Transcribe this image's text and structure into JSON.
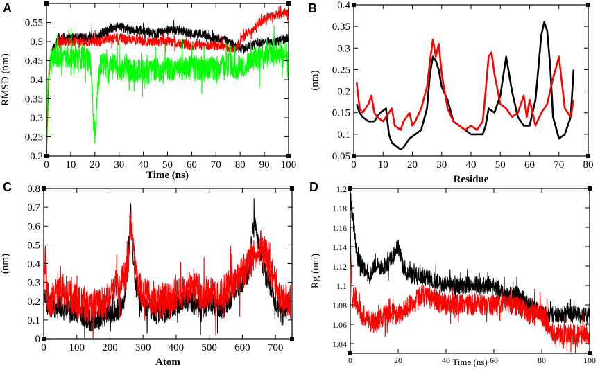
{
  "chart_data": [
    {
      "type": "line",
      "panel": "A",
      "xlabel": "Time (ns)",
      "ylabel": "RMSD (nm)",
      "xlim": [
        0,
        100
      ],
      "ylim": [
        0.2,
        0.6
      ],
      "xticks": [
        0,
        10,
        20,
        30,
        40,
        50,
        60,
        70,
        80,
        90,
        100
      ],
      "yticks": [
        0.2,
        0.25,
        0.3,
        0.35,
        0.4,
        0.45,
        0.5,
        0.55
      ],
      "ytick_labels": [
        "0.2",
        "0.25",
        "0.3",
        "0.35",
        "0.4",
        "0.45",
        "0.5",
        "0.55"
      ],
      "series": [
        {
          "name": "black",
          "color": "#000000",
          "noise": 0.012,
          "x": [
            0,
            1,
            2,
            5,
            10,
            20,
            25,
            30,
            35,
            40,
            45,
            50,
            55,
            60,
            65,
            70,
            75,
            80,
            85,
            90,
            95,
            100
          ],
          "y": [
            0.2,
            0.42,
            0.47,
            0.51,
            0.51,
            0.51,
            0.53,
            0.54,
            0.53,
            0.53,
            0.52,
            0.53,
            0.53,
            0.52,
            0.52,
            0.51,
            0.5,
            0.48,
            0.49,
            0.5,
            0.5,
            0.51
          ]
        },
        {
          "name": "red",
          "color": "#ff0000",
          "noise": 0.012,
          "x": [
            0,
            1,
            2,
            5,
            10,
            20,
            30,
            40,
            50,
            60,
            70,
            78,
            80,
            82,
            85,
            88,
            90,
            95,
            100
          ],
          "y": [
            0.2,
            0.42,
            0.46,
            0.5,
            0.5,
            0.5,
            0.51,
            0.5,
            0.5,
            0.49,
            0.49,
            0.48,
            0.5,
            0.52,
            0.53,
            0.55,
            0.56,
            0.57,
            0.58
          ]
        },
        {
          "name": "green",
          "color": "#00ff00",
          "noise": 0.032,
          "x": [
            0,
            0.6,
            1.5,
            3,
            8,
            15,
            18,
            19,
            20,
            21,
            22,
            25,
            30,
            40,
            50,
            60,
            70,
            75,
            80,
            85,
            90,
            95,
            99,
            100
          ],
          "y": [
            0.22,
            0.36,
            0.44,
            0.46,
            0.46,
            0.46,
            0.45,
            0.35,
            0.24,
            0.36,
            0.44,
            0.44,
            0.43,
            0.42,
            0.43,
            0.43,
            0.43,
            0.44,
            0.43,
            0.45,
            0.46,
            0.47,
            0.46,
            0.42
          ]
        }
      ]
    },
    {
      "type": "line",
      "panel": "B",
      "xlabel": "Residue",
      "ylabel": "(nm)",
      "xlim": [
        0,
        80
      ],
      "ylim": [
        0.05,
        0.4
      ],
      "xticks": [
        0,
        10,
        20,
        30,
        40,
        50,
        60,
        70,
        80
      ],
      "yticks": [
        0.05,
        0.1,
        0.15,
        0.2,
        0.25,
        0.3,
        0.35,
        0.4
      ],
      "ytick_labels": [
        "0.05",
        "0.1",
        "0.15",
        "0.2",
        "0.25",
        "0.3",
        "0.35",
        "0.4"
      ],
      "series": [
        {
          "name": "black",
          "color": "#000000",
          "noise": 0,
          "x": [
            1,
            2,
            3,
            5,
            7,
            9,
            11,
            12,
            13,
            15,
            16,
            17,
            19,
            21,
            23,
            25,
            26,
            27,
            28,
            29,
            30,
            32,
            34,
            36,
            38,
            40,
            42,
            44,
            45,
            46,
            48,
            50,
            52,
            54,
            56,
            58,
            60,
            62,
            64,
            65,
            66,
            67,
            68,
            70,
            72,
            74,
            75
          ],
          "y": [
            0.17,
            0.15,
            0.14,
            0.13,
            0.13,
            0.15,
            0.16,
            0.1,
            0.08,
            0.07,
            0.065,
            0.07,
            0.09,
            0.1,
            0.11,
            0.16,
            0.24,
            0.28,
            0.27,
            0.25,
            0.21,
            0.18,
            0.13,
            0.12,
            0.11,
            0.1,
            0.1,
            0.1,
            0.12,
            0.16,
            0.15,
            0.19,
            0.28,
            0.2,
            0.14,
            0.12,
            0.12,
            0.18,
            0.33,
            0.36,
            0.34,
            0.26,
            0.14,
            0.09,
            0.1,
            0.14,
            0.25
          ]
        },
        {
          "name": "red",
          "color": "#ff0000",
          "noise": 0,
          "x": [
            1,
            2,
            3,
            5,
            6,
            7,
            8,
            10,
            12,
            13,
            14,
            16,
            17,
            19,
            20,
            21,
            23,
            25,
            26,
            27,
            28,
            29,
            30,
            32,
            34,
            36,
            38,
            40,
            42,
            44,
            45,
            46,
            47,
            48,
            50,
            52,
            54,
            56,
            58,
            59,
            60,
            62,
            64,
            66,
            68,
            70,
            72,
            74,
            75
          ],
          "y": [
            0.22,
            0.16,
            0.15,
            0.17,
            0.19,
            0.15,
            0.14,
            0.13,
            0.15,
            0.16,
            0.12,
            0.11,
            0.13,
            0.15,
            0.12,
            0.13,
            0.16,
            0.21,
            0.27,
            0.32,
            0.28,
            0.31,
            0.24,
            0.16,
            0.13,
            0.12,
            0.11,
            0.12,
            0.11,
            0.13,
            0.2,
            0.28,
            0.29,
            0.24,
            0.17,
            0.16,
            0.14,
            0.15,
            0.19,
            0.14,
            0.18,
            0.12,
            0.15,
            0.17,
            0.23,
            0.28,
            0.16,
            0.14,
            0.18
          ]
        }
      ]
    },
    {
      "type": "line",
      "panel": "C",
      "xlabel": "Atom",
      "ylabel": "(nm)",
      "xlim": [
        0,
        750
      ],
      "ylim": [
        0,
        0.8
      ],
      "xticks": [
        0,
        100,
        200,
        300,
        400,
        500,
        600,
        700
      ],
      "yticks": [
        0,
        0.1,
        0.2,
        0.3,
        0.4,
        0.5,
        0.6,
        0.7,
        0.8
      ],
      "ytick_labels": [
        "0",
        "0.1",
        "0.2",
        "0.3",
        "0.4",
        "0.5",
        "0.6",
        "0.7",
        "0.8"
      ],
      "series": [
        {
          "name": "black",
          "color": "#000000",
          "noise": 0.06,
          "x": [
            0,
            20,
            40,
            60,
            80,
            100,
            120,
            140,
            160,
            180,
            200,
            220,
            240,
            255,
            262,
            270,
            280,
            300,
            320,
            340,
            360,
            380,
            400,
            420,
            440,
            460,
            480,
            500,
            520,
            540,
            560,
            580,
            600,
            620,
            635,
            645,
            660,
            680,
            700,
            720,
            745
          ],
          "y": [
            0.2,
            0.18,
            0.16,
            0.18,
            0.16,
            0.14,
            0.12,
            0.1,
            0.1,
            0.12,
            0.14,
            0.15,
            0.18,
            0.4,
            0.7,
            0.45,
            0.25,
            0.18,
            0.16,
            0.14,
            0.14,
            0.16,
            0.18,
            0.2,
            0.2,
            0.18,
            0.16,
            0.18,
            0.18,
            0.16,
            0.2,
            0.28,
            0.3,
            0.35,
            0.65,
            0.55,
            0.4,
            0.3,
            0.2,
            0.12,
            0.2
          ]
        },
        {
          "name": "red",
          "color": "#ff0000",
          "noise": 0.09,
          "x": [
            0,
            5,
            10,
            20,
            40,
            60,
            80,
            100,
            120,
            140,
            160,
            180,
            200,
            220,
            240,
            255,
            262,
            270,
            280,
            300,
            320,
            340,
            360,
            380,
            400,
            420,
            440,
            460,
            480,
            500,
            520,
            540,
            560,
            580,
            600,
            620,
            640,
            660,
            680,
            700,
            720,
            745
          ],
          "y": [
            0.25,
            0.45,
            0.22,
            0.2,
            0.24,
            0.26,
            0.22,
            0.2,
            0.18,
            0.16,
            0.2,
            0.18,
            0.22,
            0.3,
            0.3,
            0.4,
            0.6,
            0.5,
            0.3,
            0.25,
            0.22,
            0.2,
            0.2,
            0.22,
            0.24,
            0.25,
            0.28,
            0.26,
            0.24,
            0.25,
            0.22,
            0.24,
            0.28,
            0.3,
            0.35,
            0.4,
            0.45,
            0.5,
            0.4,
            0.3,
            0.2,
            0.2
          ]
        }
      ]
    },
    {
      "type": "line",
      "panel": "D",
      "xlabel": "Time (ns)",
      "ylabel": "Rg (nm)",
      "xlim": [
        0,
        100
      ],
      "ylim": [
        1.03,
        1.2
      ],
      "xticks": [
        0,
        20,
        40,
        60,
        80,
        100
      ],
      "yticks": [
        1.04,
        1.06,
        1.08,
        1.1,
        1.12,
        1.14,
        1.16,
        1.18,
        1.2
      ],
      "ytick_labels": [
        "1.04",
        "1.06",
        "1.08",
        "1.1",
        "1.12",
        "1.14",
        "1.16",
        "1.18",
        "1.2"
      ],
      "series": [
        {
          "name": "black",
          "color": "#000000",
          "noise": 0.009,
          "x": [
            0,
            1,
            2,
            3,
            5,
            8,
            10,
            15,
            18,
            20,
            22,
            25,
            30,
            40,
            50,
            60,
            65,
            70,
            75,
            80,
            85,
            90,
            95,
            100
          ],
          "y": [
            1.19,
            1.17,
            1.15,
            1.13,
            1.12,
            1.11,
            1.12,
            1.12,
            1.13,
            1.14,
            1.12,
            1.11,
            1.11,
            1.1,
            1.1,
            1.1,
            1.09,
            1.09,
            1.08,
            1.07,
            1.07,
            1.07,
            1.07,
            1.07
          ]
        },
        {
          "name": "red",
          "color": "#ff0000",
          "noise": 0.011,
          "x": [
            0,
            0.8,
            2,
            3,
            5,
            10,
            15,
            20,
            25,
            30,
            40,
            50,
            60,
            70,
            75,
            80,
            85,
            90,
            95,
            100
          ],
          "y": [
            1.16,
            1.08,
            1.09,
            1.08,
            1.07,
            1.06,
            1.07,
            1.07,
            1.08,
            1.09,
            1.08,
            1.08,
            1.08,
            1.08,
            1.07,
            1.07,
            1.05,
            1.05,
            1.05,
            1.05
          ]
        }
      ]
    }
  ]
}
